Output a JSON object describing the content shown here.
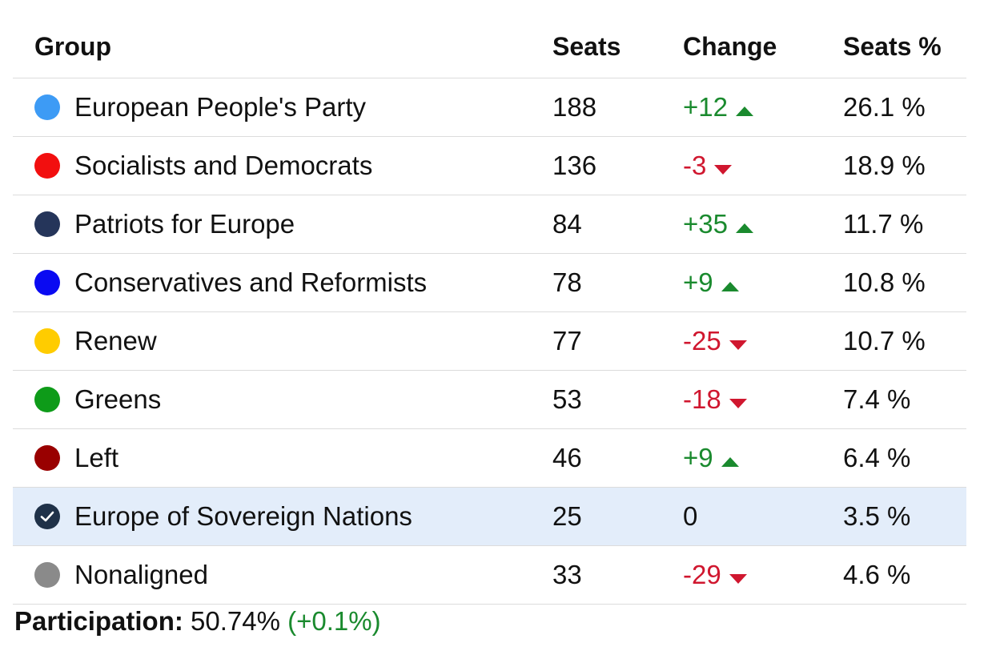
{
  "chart_data": {
    "type": "table",
    "columns": [
      "Group",
      "Seats",
      "Change",
      "Seats %"
    ],
    "rows": [
      {
        "group": "European People's Party",
        "color": "#3d9bf5",
        "seats": "188",
        "change": "+12",
        "direction": "up",
        "pct": "26.1 %"
      },
      {
        "group": "Socialists and Democrats",
        "color": "#f20f0f",
        "seats": "136",
        "change": "-3",
        "direction": "down",
        "pct": "18.9 %"
      },
      {
        "group": "Patriots for Europe",
        "color": "#25355a",
        "seats": "84",
        "change": "+35",
        "direction": "up",
        "pct": "11.7 %"
      },
      {
        "group": "Conservatives and Reformists",
        "color": "#0a0af2",
        "seats": "78",
        "change": "+9",
        "direction": "up",
        "pct": "10.8 %"
      },
      {
        "group": "Renew",
        "color": "#ffcc00",
        "seats": "77",
        "change": "-25",
        "direction": "down",
        "pct": "10.7 %"
      },
      {
        "group": "Greens",
        "color": "#0e9b19",
        "seats": "53",
        "change": "-18",
        "direction": "down",
        "pct": "7.4 %"
      },
      {
        "group": "Left",
        "color": "#990000",
        "seats": "46",
        "change": "+9",
        "direction": "up",
        "pct": "6.4 %"
      },
      {
        "group": "Europe of Sovereign Nations",
        "color": "#1f3148",
        "seats": "25",
        "change": "0",
        "direction": "none",
        "pct": "3.5 %",
        "selected": true
      },
      {
        "group": "Nonaligned",
        "color": "#8a8a8a",
        "seats": "33",
        "change": "-29",
        "direction": "down",
        "pct": "4.6 %"
      }
    ]
  },
  "footer": {
    "label": "Participation:",
    "value": "50.74%",
    "delta": "(+0.1%)"
  },
  "colors": {
    "up": "#1a8a2e",
    "down": "#d0172f",
    "highlight_bg": "#e3edfa"
  }
}
